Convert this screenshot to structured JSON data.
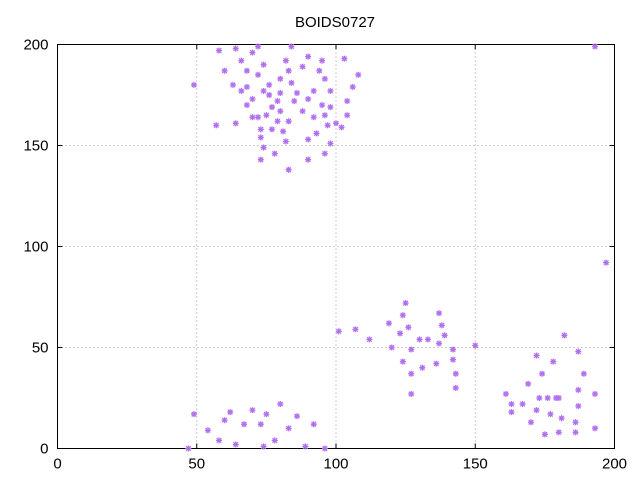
{
  "chart_data": {
    "type": "scatter",
    "title": "BOIDS0727",
    "xlabel": "",
    "ylabel": "",
    "xlim": [
      0,
      200
    ],
    "ylim": [
      0,
      200
    ],
    "xticks": [
      0,
      50,
      100,
      150,
      200
    ],
    "yticks": [
      0,
      50,
      100,
      150,
      200
    ],
    "grid": true,
    "marker_color": "#b070f0",
    "series": [
      {
        "points": [
          [
            58,
            197
          ],
          [
            64,
            198
          ],
          [
            70,
            196
          ],
          [
            72,
            199
          ],
          [
            84,
            199
          ],
          [
            90,
            194
          ],
          [
            95,
            192
          ],
          [
            103,
            193
          ],
          [
            60,
            187
          ],
          [
            66,
            192
          ],
          [
            68,
            187
          ],
          [
            72,
            185
          ],
          [
            74,
            190
          ],
          [
            76,
            180
          ],
          [
            80,
            183
          ],
          [
            82,
            192
          ],
          [
            84,
            181
          ],
          [
            88,
            189
          ],
          [
            94,
            187
          ],
          [
            96,
            183
          ],
          [
            98,
            177
          ],
          [
            108,
            185
          ],
          [
            106,
            179
          ],
          [
            104,
            172
          ],
          [
            66,
            177
          ],
          [
            68,
            179
          ],
          [
            70,
            173
          ],
          [
            74,
            177
          ],
          [
            76,
            175
          ],
          [
            77,
            169
          ],
          [
            79,
            172
          ],
          [
            80,
            176
          ],
          [
            83,
            187
          ],
          [
            85,
            172
          ],
          [
            86,
            176
          ],
          [
            90,
            173
          ],
          [
            92,
            177
          ],
          [
            95,
            170
          ],
          [
            96,
            165
          ],
          [
            98,
            169
          ],
          [
            68,
            170
          ],
          [
            70,
            164
          ],
          [
            72,
            164
          ],
          [
            73,
            158
          ],
          [
            75,
            165
          ],
          [
            77,
            158
          ],
          [
            79,
            162
          ],
          [
            80,
            167
          ],
          [
            83,
            162
          ],
          [
            88,
            167
          ],
          [
            92,
            164
          ],
          [
            97,
            160
          ],
          [
            100,
            161
          ],
          [
            102,
            159
          ],
          [
            104,
            165
          ],
          [
            63,
            180
          ],
          [
            57,
            160
          ],
          [
            64,
            161
          ],
          [
            74,
            149
          ],
          [
            73,
            143
          ],
          [
            78,
            146
          ],
          [
            82,
            152
          ],
          [
            83,
            138
          ],
          [
            81,
            157
          ],
          [
            90,
            143
          ],
          [
            93,
            156
          ],
          [
            96,
            146
          ],
          [
            98,
            151
          ],
          [
            49,
            180
          ],
          [
            73,
            154
          ],
          [
            90,
            153
          ],
          [
            193,
            199
          ],
          [
            197,
            92
          ],
          [
            101,
            58
          ],
          [
            107,
            59
          ],
          [
            112,
            54
          ],
          [
            119,
            62
          ],
          [
            120,
            50
          ],
          [
            123,
            57
          ],
          [
            124,
            66
          ],
          [
            124,
            43
          ],
          [
            125,
            72
          ],
          [
            126,
            60
          ],
          [
            127,
            49
          ],
          [
            127,
            37
          ],
          [
            127,
            27
          ],
          [
            130,
            54
          ],
          [
            131,
            40
          ],
          [
            133,
            54
          ],
          [
            136,
            42
          ],
          [
            137,
            67
          ],
          [
            137,
            52
          ],
          [
            138,
            61
          ],
          [
            139,
            56
          ],
          [
            142,
            49
          ],
          [
            142,
            44
          ],
          [
            143,
            37
          ],
          [
            143,
            30
          ],
          [
            150,
            51
          ],
          [
            161,
            27
          ],
          [
            163,
            22
          ],
          [
            163,
            18
          ],
          [
            167,
            22
          ],
          [
            169,
            32
          ],
          [
            170,
            13
          ],
          [
            172,
            46
          ],
          [
            172,
            19
          ],
          [
            173,
            25
          ],
          [
            174,
            37
          ],
          [
            175,
            7
          ],
          [
            176,
            25
          ],
          [
            177,
            17
          ],
          [
            178,
            43
          ],
          [
            179,
            25
          ],
          [
            180,
            8
          ],
          [
            180,
            25
          ],
          [
            181,
            15
          ],
          [
            182,
            56
          ],
          [
            186,
            13
          ],
          [
            186,
            8
          ],
          [
            187,
            48
          ],
          [
            187,
            29
          ],
          [
            187,
            21
          ],
          [
            189,
            37
          ],
          [
            193,
            27
          ],
          [
            193,
            10
          ],
          [
            47,
            0
          ],
          [
            49,
            17
          ],
          [
            54,
            9
          ],
          [
            58,
            4
          ],
          [
            60,
            14
          ],
          [
            62,
            18
          ],
          [
            64,
            2
          ],
          [
            67,
            12
          ],
          [
            70,
            19
          ],
          [
            73,
            12
          ],
          [
            74,
            1
          ],
          [
            75,
            17
          ],
          [
            78,
            4
          ],
          [
            80,
            22
          ],
          [
            83,
            10
          ],
          [
            86,
            16
          ],
          [
            89,
            1
          ],
          [
            92,
            12
          ],
          [
            96,
            0
          ]
        ]
      }
    ]
  }
}
